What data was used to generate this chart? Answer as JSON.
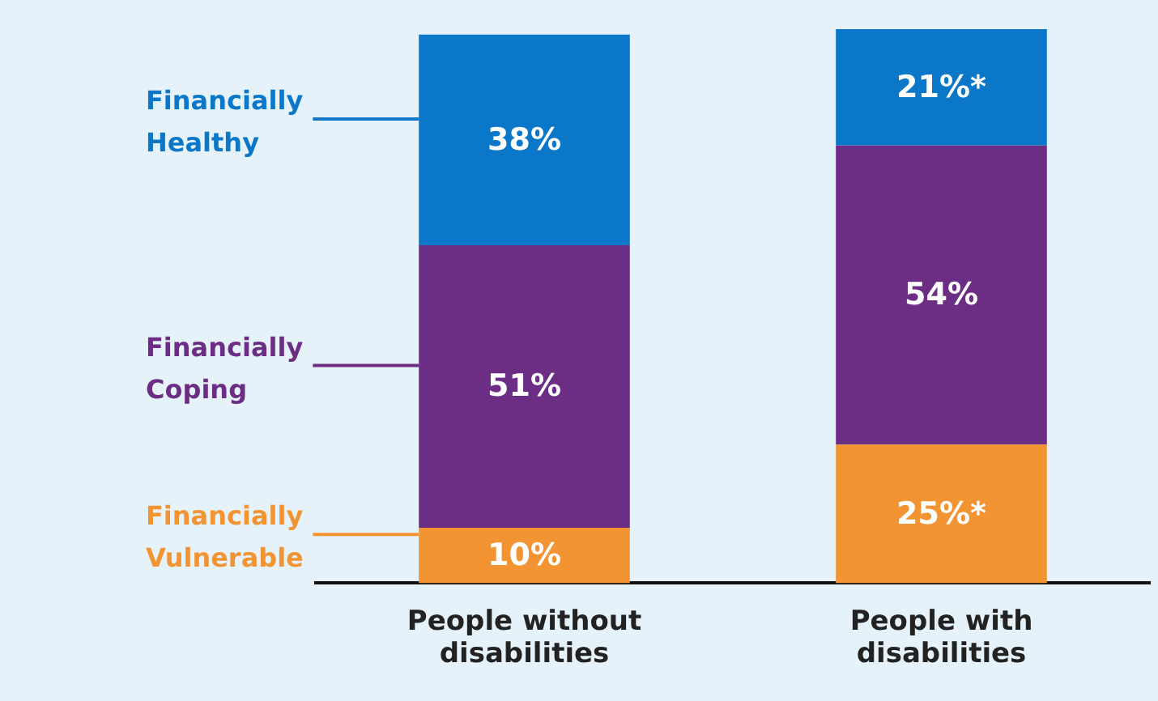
{
  "chart_data": {
    "type": "bar",
    "stacked": true,
    "categories": [
      "People without disabilities",
      "People with disabilities"
    ],
    "series": [
      {
        "name": "Financially Vulnerable",
        "color": "#f39433",
        "values": [
          10,
          25
        ],
        "value_labels": [
          "10%",
          "25%*"
        ]
      },
      {
        "name": "Financially Coping",
        "color": "#6c2d85",
        "values": [
          51,
          54
        ],
        "value_labels": [
          "51%",
          "54%"
        ]
      },
      {
        "name": "Financially Healthy",
        "color": "#0a77c8",
        "values": [
          38,
          21
        ],
        "value_labels": [
          "38%",
          "21%*"
        ]
      }
    ],
    "grid": false,
    "legend": "left",
    "tick_labels": "x"
  }
}
